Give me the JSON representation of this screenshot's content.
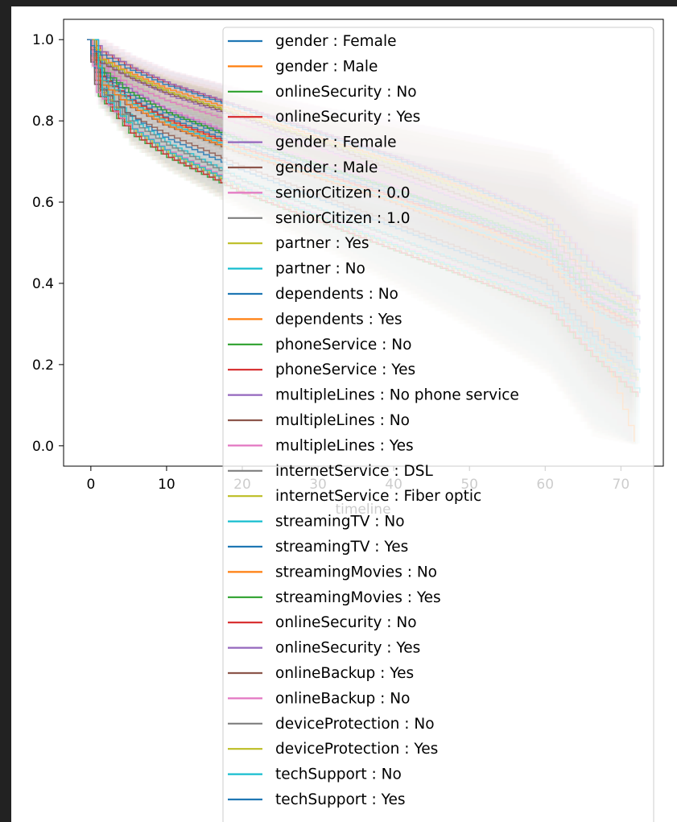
{
  "chart_data": {
    "type": "line",
    "title": "",
    "xlabel": "timeline",
    "ylabel": "",
    "xlim": [
      -3.6,
      75.6
    ],
    "ylim": [
      -0.05,
      1.05
    ],
    "x_ticks": [
      0,
      10,
      20,
      30,
      40,
      50,
      60,
      70
    ],
    "x_tick_labels": [
      "0",
      "10",
      "20",
      "30",
      "40",
      "50",
      "60",
      "70"
    ],
    "y_ticks": [
      0.0,
      0.2,
      0.4,
      0.6,
      0.8,
      1.0
    ],
    "y_tick_labels": [
      "0.0",
      "0.2",
      "0.4",
      "0.6",
      "0.8",
      "1.0"
    ],
    "grid": false,
    "legend_placement": "upper right",
    "confidence_band": true,
    "palette": [
      "#1f77b4",
      "#ff7f0e",
      "#2ca02c",
      "#d62728",
      "#9467bd",
      "#8c564b",
      "#e377c2",
      "#7f7f7f",
      "#bcbd22",
      "#17becf"
    ],
    "series": [
      {
        "name": "gender : Female",
        "color": "#1f77b4",
        "x": [
          0,
          1,
          5,
          10,
          20,
          30,
          40,
          50,
          60,
          66,
          72
        ],
        "values": [
          1.0,
          0.92,
          0.86,
          0.81,
          0.74,
          0.68,
          0.62,
          0.56,
          0.48,
          0.36,
          0.32
        ]
      },
      {
        "name": "gender : Male",
        "color": "#ff7f0e",
        "x": [
          0,
          1,
          5,
          10,
          20,
          30,
          40,
          50,
          60,
          66,
          72
        ],
        "values": [
          1.0,
          0.91,
          0.85,
          0.8,
          0.73,
          0.67,
          0.61,
          0.55,
          0.47,
          0.35,
          0.3
        ]
      },
      {
        "name": "onlineSecurity : No",
        "color": "#2ca02c",
        "x": [
          0,
          1,
          5,
          10,
          20,
          30,
          40,
          50,
          60,
          66,
          72
        ],
        "values": [
          1.0,
          0.86,
          0.77,
          0.71,
          0.62,
          0.55,
          0.48,
          0.41,
          0.34,
          0.22,
          0.12
        ]
      },
      {
        "name": "onlineSecurity : Yes",
        "color": "#d62728",
        "x": [
          0,
          1,
          5,
          10,
          20,
          30,
          40,
          50,
          60,
          66,
          72
        ],
        "values": [
          1.0,
          0.97,
          0.93,
          0.89,
          0.83,
          0.77,
          0.71,
          0.64,
          0.56,
          0.44,
          0.36
        ]
      },
      {
        "name": "gender : Female",
        "color": "#9467bd",
        "x": [
          0,
          1,
          5,
          10,
          20,
          30,
          40,
          50,
          60,
          66,
          72
        ],
        "values": [
          1.0,
          0.94,
          0.9,
          0.86,
          0.8,
          0.73,
          0.66,
          0.59,
          0.51,
          0.38,
          0.33
        ]
      },
      {
        "name": "gender : Male",
        "color": "#8c564b",
        "x": [
          0,
          1,
          5,
          10,
          20,
          30,
          40,
          50,
          60,
          66,
          72
        ],
        "values": [
          1.0,
          0.9,
          0.84,
          0.79,
          0.72,
          0.66,
          0.6,
          0.53,
          0.46,
          0.34,
          0.29
        ]
      },
      {
        "name": "seniorCitizen : 0.0",
        "color": "#e377c2",
        "x": [
          0,
          1,
          5,
          10,
          20,
          30,
          40,
          50,
          60,
          66,
          72
        ],
        "values": [
          1.0,
          0.93,
          0.88,
          0.83,
          0.76,
          0.7,
          0.64,
          0.57,
          0.5,
          0.37,
          0.31
        ]
      },
      {
        "name": "seniorCitizen : 1.0",
        "color": "#7f7f7f",
        "x": [
          0,
          1,
          5,
          10,
          20,
          30,
          40,
          50,
          60,
          66,
          72
        ],
        "values": [
          1.0,
          0.87,
          0.78,
          0.72,
          0.63,
          0.56,
          0.49,
          0.42,
          0.35,
          0.24,
          0.17
        ]
      },
      {
        "name": "partner : Yes",
        "color": "#bcbd22",
        "x": [
          0,
          1,
          5,
          10,
          20,
          30,
          40,
          50,
          60,
          66,
          72
        ],
        "values": [
          1.0,
          0.95,
          0.91,
          0.87,
          0.81,
          0.75,
          0.69,
          0.62,
          0.55,
          0.42,
          0.35
        ]
      },
      {
        "name": "partner : No",
        "color": "#17becf",
        "x": [
          0,
          1,
          5,
          10,
          20,
          30,
          40,
          50,
          60,
          66,
          72
        ],
        "values": [
          1.0,
          0.88,
          0.8,
          0.74,
          0.65,
          0.58,
          0.51,
          0.44,
          0.37,
          0.25,
          0.18
        ]
      },
      {
        "name": "dependents : No",
        "color": "#1f77b4",
        "x": [
          0,
          1,
          5,
          10,
          20,
          30,
          40,
          50,
          60,
          66,
          72
        ],
        "values": [
          1.0,
          0.89,
          0.82,
          0.76,
          0.68,
          0.61,
          0.54,
          0.47,
          0.4,
          0.28,
          0.2
        ]
      },
      {
        "name": "dependents : Yes",
        "color": "#ff7f0e",
        "x": [
          0,
          1,
          5,
          10,
          20,
          30,
          40,
          50,
          60,
          66,
          72
        ],
        "values": [
          1.0,
          0.96,
          0.92,
          0.88,
          0.82,
          0.76,
          0.7,
          0.63,
          0.55,
          0.4,
          0.33
        ]
      },
      {
        "name": "phoneService : No",
        "color": "#2ca02c",
        "x": [
          0,
          1,
          5,
          10,
          20,
          30,
          40,
          50,
          60,
          66,
          72
        ],
        "values": [
          1.0,
          0.92,
          0.87,
          0.82,
          0.75,
          0.69,
          0.63,
          0.56,
          0.49,
          0.36,
          0.3
        ]
      },
      {
        "name": "phoneService : Yes",
        "color": "#d62728",
        "x": [
          0,
          1,
          5,
          10,
          20,
          30,
          40,
          50,
          60,
          66,
          72
        ],
        "values": [
          1.0,
          0.91,
          0.85,
          0.8,
          0.73,
          0.67,
          0.61,
          0.55,
          0.48,
          0.35,
          0.29
        ]
      },
      {
        "name": "multipleLines : No phone service",
        "color": "#9467bd",
        "x": [
          0,
          1,
          5,
          10,
          20,
          30,
          40,
          50,
          60,
          66,
          72
        ],
        "values": [
          1.0,
          0.92,
          0.87,
          0.82,
          0.75,
          0.69,
          0.63,
          0.56,
          0.49,
          0.36,
          0.3
        ]
      },
      {
        "name": "multipleLines : No",
        "color": "#8c564b",
        "x": [
          0,
          1,
          5,
          10,
          20,
          30,
          40,
          50,
          60,
          66,
          72
        ],
        "values": [
          1.0,
          0.89,
          0.82,
          0.77,
          0.69,
          0.62,
          0.55,
          0.48,
          0.41,
          0.29,
          0.22
        ]
      },
      {
        "name": "multipleLines : Yes",
        "color": "#e377c2",
        "x": [
          0,
          1,
          5,
          10,
          20,
          30,
          40,
          50,
          60,
          66,
          72
        ],
        "values": [
          1.0,
          0.94,
          0.89,
          0.85,
          0.79,
          0.73,
          0.67,
          0.6,
          0.53,
          0.4,
          0.34
        ]
      },
      {
        "name": "internetService : DSL",
        "color": "#7f7f7f",
        "x": [
          0,
          1,
          5,
          10,
          20,
          30,
          40,
          50,
          60,
          66,
          72
        ],
        "values": [
          1.0,
          0.95,
          0.91,
          0.87,
          0.81,
          0.75,
          0.69,
          0.62,
          0.55,
          0.42,
          0.35
        ]
      },
      {
        "name": "internetService : Fiber optic",
        "color": "#bcbd22",
        "x": [
          0,
          1,
          5,
          10,
          20,
          30,
          40,
          50,
          60,
          66,
          72
        ],
        "values": [
          1.0,
          0.87,
          0.78,
          0.72,
          0.63,
          0.56,
          0.49,
          0.42,
          0.35,
          0.23,
          0.16
        ]
      },
      {
        "name": "streamingTV : No",
        "color": "#17becf",
        "x": [
          0,
          1,
          5,
          10,
          20,
          30,
          40,
          50,
          60,
          66,
          72
        ],
        "values": [
          1.0,
          0.9,
          0.84,
          0.79,
          0.72,
          0.66,
          0.6,
          0.53,
          0.46,
          0.33,
          0.26
        ]
      },
      {
        "name": "streamingTV : Yes",
        "color": "#1f77b4",
        "x": [
          0,
          1,
          5,
          10,
          20,
          30,
          40,
          50,
          60,
          66,
          72
        ],
        "values": [
          1.0,
          0.93,
          0.87,
          0.82,
          0.75,
          0.69,
          0.63,
          0.57,
          0.5,
          0.38,
          0.33
        ]
      },
      {
        "name": "streamingMovies : No",
        "color": "#ff7f0e",
        "x": [
          0,
          1,
          5,
          10,
          20,
          30,
          40,
          50,
          60,
          66,
          72
        ],
        "values": [
          1.0,
          0.9,
          0.84,
          0.79,
          0.72,
          0.66,
          0.6,
          0.53,
          0.46,
          0.33,
          0.01
        ]
      },
      {
        "name": "streamingMovies : Yes",
        "color": "#2ca02c",
        "x": [
          0,
          1,
          5,
          10,
          20,
          30,
          40,
          50,
          60,
          66,
          72
        ],
        "values": [
          1.0,
          0.93,
          0.87,
          0.82,
          0.75,
          0.69,
          0.63,
          0.57,
          0.5,
          0.38,
          0.32
        ]
      },
      {
        "name": "onlineSecurity : No",
        "color": "#d62728",
        "x": [
          0,
          1,
          5,
          10,
          20,
          30,
          40,
          50,
          60,
          66,
          72
        ],
        "values": [
          1.0,
          0.86,
          0.77,
          0.71,
          0.62,
          0.55,
          0.48,
          0.41,
          0.34,
          0.22,
          0.12
        ]
      },
      {
        "name": "onlineSecurity : Yes",
        "color": "#9467bd",
        "x": [
          0,
          1,
          5,
          10,
          20,
          30,
          40,
          50,
          60,
          66,
          72
        ],
        "values": [
          1.0,
          0.97,
          0.93,
          0.89,
          0.83,
          0.77,
          0.71,
          0.64,
          0.56,
          0.44,
          0.36
        ]
      },
      {
        "name": "onlineBackup : Yes",
        "color": "#8c564b",
        "x": [
          0,
          1,
          5,
          10,
          20,
          30,
          40,
          50,
          60,
          66,
          72
        ],
        "values": [
          1.0,
          0.95,
          0.91,
          0.87,
          0.81,
          0.75,
          0.68,
          0.61,
          0.54,
          0.41,
          0.34
        ]
      },
      {
        "name": "onlineBackup : No",
        "color": "#e377c2",
        "x": [
          0,
          1,
          5,
          10,
          20,
          30,
          40,
          50,
          60,
          66,
          72
        ],
        "values": [
          1.0,
          0.87,
          0.79,
          0.73,
          0.64,
          0.57,
          0.5,
          0.43,
          0.36,
          0.24,
          0.15
        ]
      },
      {
        "name": "deviceProtection : No",
        "color": "#7f7f7f",
        "x": [
          0,
          1,
          5,
          10,
          20,
          30,
          40,
          50,
          60,
          66,
          72
        ],
        "values": [
          1.0,
          0.88,
          0.8,
          0.74,
          0.65,
          0.58,
          0.51,
          0.44,
          0.37,
          0.25,
          0.16
        ]
      },
      {
        "name": "deviceProtection : Yes",
        "color": "#bcbd22",
        "x": [
          0,
          1,
          5,
          10,
          20,
          30,
          40,
          50,
          60,
          66,
          72
        ],
        "values": [
          1.0,
          0.95,
          0.91,
          0.87,
          0.81,
          0.75,
          0.69,
          0.62,
          0.55,
          0.42,
          0.35
        ]
      },
      {
        "name": "techSupport : No",
        "color": "#17becf",
        "x": [
          0,
          1,
          5,
          10,
          20,
          30,
          40,
          50,
          60,
          66,
          72
        ],
        "values": [
          1.0,
          0.86,
          0.78,
          0.72,
          0.63,
          0.56,
          0.49,
          0.42,
          0.35,
          0.23,
          0.13
        ]
      },
      {
        "name": "techSupport : Yes",
        "color": "#1f77b4",
        "x": [
          0,
          1,
          5,
          10,
          20,
          30,
          40,
          50,
          60,
          66,
          72
        ],
        "values": [
          1.0,
          0.97,
          0.93,
          0.89,
          0.83,
          0.77,
          0.71,
          0.64,
          0.56,
          0.44,
          0.37
        ]
      }
    ]
  }
}
